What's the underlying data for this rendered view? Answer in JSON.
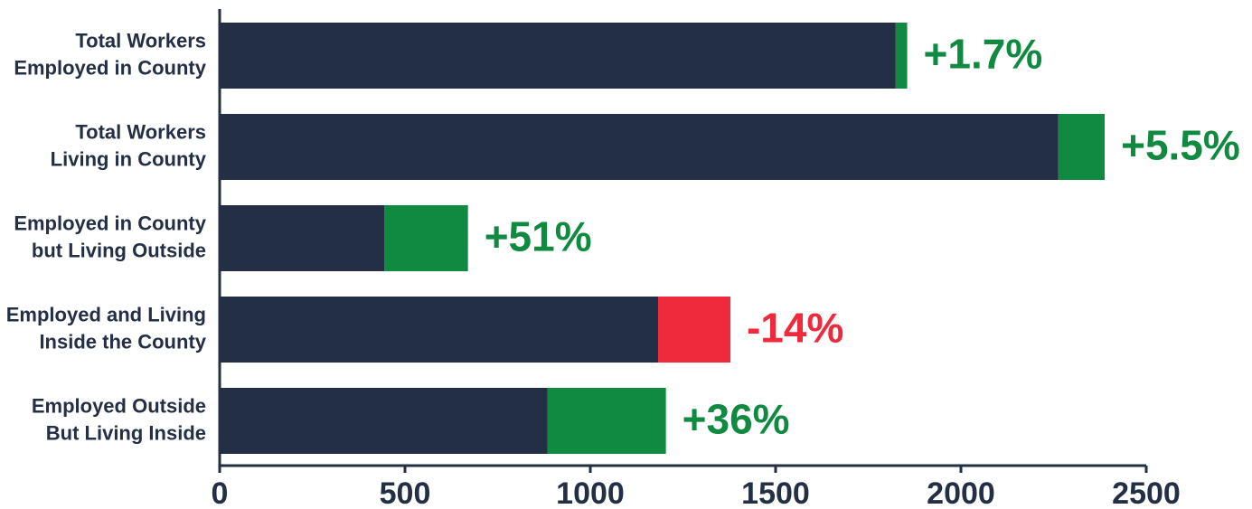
{
  "chart_data": {
    "type": "stacked-barh",
    "categories": [
      [
        "Total Workers",
        "Employed in County"
      ],
      [
        "Total Workers",
        "Living in County"
      ],
      [
        "Employed in County",
        "but Living Outside"
      ],
      [
        "Employed and Living",
        "Inside the County"
      ],
      [
        "Employed Outside",
        "But Living Inside"
      ]
    ],
    "series": [
      {
        "color": "#232f45",
        "values": [
          1824,
          2263,
          444,
          1183,
          885
        ]
      },
      {
        "colors": [
          "#0f8a40",
          "#0f8a40",
          "#0f8a40",
          "#ee2a3c",
          "#0f8a40"
        ],
        "values": [
          31,
          125,
          226,
          195,
          319
        ],
        "value_labels": [
          "+1.7%",
          "+5.5%",
          "+51%",
          "-14%",
          "+36%"
        ]
      }
    ],
    "xlim": [
      0,
      2500
    ],
    "xticks": [
      0,
      500,
      1000,
      1500,
      2000,
      2500
    ]
  }
}
